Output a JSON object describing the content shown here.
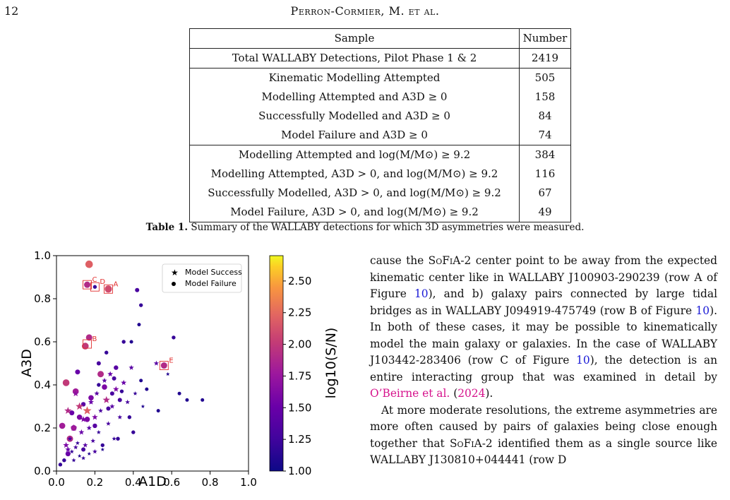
{
  "header": {
    "page_number": "12",
    "running_title": "Perron-Cormier, M. et al."
  },
  "table": {
    "col_headers": [
      "Sample",
      "Number"
    ],
    "rows": [
      [
        "Total WALLABY Detections, Pilot Phase 1 & 2",
        "2419"
      ],
      [
        "Kinematic Modelling Attempted",
        "505"
      ],
      [
        "Modelling Attempted and A3D ≥ 0",
        "158"
      ],
      [
        "Successfully Modelled and A3D ≥ 0",
        "84"
      ],
      [
        "Model Failure and A3D ≥ 0",
        "74"
      ],
      [
        "Modelling Attempted and log(M/M⊙) ≥ 9.2",
        "384"
      ],
      [
        "Modelling Attempted, A3D > 0, and log(M/M⊙) ≥ 9.2",
        "116"
      ],
      [
        "Successfully Modelled, A3D > 0, and log(M/M⊙) ≥ 9.2",
        "67"
      ],
      [
        "Model Failure, A3D > 0, and log(M/M⊙) ≥ 9.2",
        "49"
      ]
    ]
  },
  "caption": {
    "label": "Table 1.",
    "text": " Summary of the WALLABY detections for which 3D asymmetries were measured."
  },
  "chart_data": {
    "type": "scatter",
    "xlabel": "A1D",
    "ylabel": "A3D",
    "xlim": [
      0.0,
      1.0
    ],
    "ylim": [
      0.0,
      1.0
    ],
    "x_ticks": [
      "0.0",
      "0.2",
      "0.4",
      "0.6",
      "0.8",
      "1.0"
    ],
    "y_ticks": [
      "0.0",
      "0.2",
      "0.4",
      "0.6",
      "0.8",
      "1.0"
    ],
    "grid": false,
    "legend_position": "top-right",
    "colorbar": {
      "label": "log10(S/N)",
      "range": [
        1.0,
        2.7
      ],
      "ticks": [
        "1.00",
        "1.25",
        "1.50",
        "1.75",
        "2.00",
        "2.25",
        "2.50"
      ],
      "colormap": "plasma"
    },
    "series": [
      {
        "name": "Model Success",
        "marker": "star",
        "points": [
          [
            0.05,
            0.12,
            1.6
          ],
          [
            0.06,
            0.1,
            1.5
          ],
          [
            0.07,
            0.15,
            1.3
          ],
          [
            0.08,
            0.09,
            1.2
          ],
          [
            0.09,
            0.2,
            1.8
          ],
          [
            0.1,
            0.11,
            1.3
          ],
          [
            0.11,
            0.13,
            1.2
          ],
          [
            0.12,
            0.07,
            1.1
          ],
          [
            0.12,
            0.3,
            2.0
          ],
          [
            0.13,
            0.18,
            1.5
          ],
          [
            0.14,
            0.24,
            1.6
          ],
          [
            0.15,
            0.12,
            1.4
          ],
          [
            0.16,
            0.28,
            2.2
          ],
          [
            0.17,
            0.08,
            1.1
          ],
          [
            0.17,
            0.2,
            1.4
          ],
          [
            0.18,
            0.32,
            1.5
          ],
          [
            0.19,
            0.14,
            1.3
          ],
          [
            0.2,
            0.25,
            1.6
          ],
          [
            0.21,
            0.36,
            1.4
          ],
          [
            0.22,
            0.18,
            1.2
          ],
          [
            0.23,
            0.28,
            1.3
          ],
          [
            0.24,
            0.1,
            1.1
          ],
          [
            0.25,
            0.42,
            1.4
          ],
          [
            0.26,
            0.33,
            1.9
          ],
          [
            0.27,
            0.22,
            1.3
          ],
          [
            0.28,
            0.45,
            1.5
          ],
          [
            0.29,
            0.3,
            1.4
          ],
          [
            0.3,
            0.15,
            1.2
          ],
          [
            0.31,
            0.38,
            1.6
          ],
          [
            0.33,
            0.25,
            1.3
          ],
          [
            0.35,
            0.41,
            1.5
          ],
          [
            0.37,
            0.32,
            1.3
          ],
          [
            0.39,
            0.48,
            1.4
          ],
          [
            0.41,
            0.36,
            1.2
          ],
          [
            0.45,
            0.3,
            1.1
          ],
          [
            0.52,
            0.5,
            1.4
          ],
          [
            0.58,
            0.45,
            1.1
          ],
          [
            0.09,
            0.05,
            1.2
          ],
          [
            0.14,
            0.06,
            1.2
          ],
          [
            0.2,
            0.09,
            1.3
          ],
          [
            0.06,
            0.28,
            1.9
          ],
          [
            0.1,
            0.36,
            1.7
          ]
        ]
      },
      {
        "name": "Model Failure",
        "marker": "circle",
        "points": [
          [
            0.17,
            0.96,
            2.2
          ],
          [
            0.16,
            0.865,
            1.9
          ],
          [
            0.2,
            0.855,
            1.2
          ],
          [
            0.27,
            0.845,
            2.1
          ],
          [
            0.42,
            0.84,
            1.3
          ],
          [
            0.44,
            0.77,
            1.2
          ],
          [
            0.43,
            0.68,
            1.1
          ],
          [
            0.15,
            0.58,
            2.0
          ],
          [
            0.17,
            0.62,
            1.9
          ],
          [
            0.61,
            0.62,
            1.2
          ],
          [
            0.35,
            0.6,
            1.2
          ],
          [
            0.39,
            0.6,
            1.1
          ],
          [
            0.56,
            0.49,
            1.9
          ],
          [
            0.68,
            0.33,
            1.1
          ],
          [
            0.76,
            0.33,
            1.1
          ],
          [
            0.64,
            0.36,
            1.1
          ],
          [
            0.05,
            0.41,
            2.0
          ],
          [
            0.1,
            0.37,
            1.8
          ],
          [
            0.14,
            0.31,
            1.4
          ],
          [
            0.18,
            0.34,
            1.6
          ],
          [
            0.23,
            0.45,
            1.9
          ],
          [
            0.25,
            0.39,
            1.6
          ],
          [
            0.31,
            0.48,
            1.4
          ],
          [
            0.3,
            0.43,
            1.3
          ],
          [
            0.34,
            0.37,
            1.2
          ],
          [
            0.29,
            0.36,
            1.3
          ],
          [
            0.22,
            0.4,
            1.2
          ],
          [
            0.12,
            0.25,
            1.6
          ],
          [
            0.09,
            0.2,
            1.7
          ],
          [
            0.07,
            0.15,
            1.9
          ],
          [
            0.08,
            0.27,
            1.5
          ],
          [
            0.16,
            0.24,
            1.6
          ],
          [
            0.2,
            0.21,
            1.4
          ],
          [
            0.27,
            0.29,
            1.3
          ],
          [
            0.38,
            0.25,
            1.2
          ],
          [
            0.4,
            0.18,
            1.2
          ],
          [
            0.32,
            0.15,
            1.2
          ],
          [
            0.24,
            0.12,
            1.2
          ],
          [
            0.14,
            0.1,
            1.3
          ],
          [
            0.06,
            0.08,
            1.5
          ],
          [
            0.03,
            0.21,
            1.8
          ],
          [
            0.04,
            0.05,
            1.2
          ],
          [
            0.44,
            0.42,
            1.1
          ],
          [
            0.47,
            0.38,
            1.1
          ],
          [
            0.53,
            0.28,
            1.1
          ],
          [
            0.02,
            0.03,
            1.2
          ],
          [
            0.11,
            0.46,
            1.5
          ],
          [
            0.26,
            0.55,
            1.2
          ],
          [
            0.22,
            0.5,
            1.3
          ],
          [
            0.33,
            0.33,
            1.3
          ]
        ]
      }
    ],
    "annotations": [
      {
        "label": "A",
        "x": 0.27,
        "y": 0.845
      },
      {
        "label": "B",
        "x": 0.16,
        "y": 0.59
      },
      {
        "label": "C",
        "x": 0.16,
        "y": 0.865
      },
      {
        "label": "D",
        "x": 0.2,
        "y": 0.855
      },
      {
        "label": "E",
        "x": 0.56,
        "y": 0.49
      }
    ]
  },
  "body": {
    "p1": [
      {
        "t": "cause the "
      },
      {
        "t": "SoFiA-2",
        "cls": "sc"
      },
      {
        "t": " center point to be away from the expected kinematic center like in WALLABY J100903-290239 (row A of Figure "
      },
      {
        "t": "10",
        "cls": "ref"
      },
      {
        "t": "), and b) galaxy pairs connected by large tidal bridges as in WALLABY J094919-475749 (row B of Figure "
      },
      {
        "t": "10",
        "cls": "ref"
      },
      {
        "t": "). In both of these cases, it may be possible to kinematically model the main galaxy or galaxies. In the case of WALLABY J103442-283406 (row C of Figure "
      },
      {
        "t": "10",
        "cls": "ref"
      },
      {
        "t": "), the detection is an entire interacting group that was examined in detail by "
      },
      {
        "t": "O’Beirne et al.",
        "cls": "cite"
      },
      {
        "t": " ("
      },
      {
        "t": "2024",
        "cls": "cite"
      },
      {
        "t": ")."
      }
    ],
    "p2": [
      {
        "t": "At more moderate resolutions, the extreme asymmetries are more often caused by pairs of galaxies being close enough together that "
      },
      {
        "t": "SoFiA-2",
        "cls": "sc"
      },
      {
        "t": " identified them as a single source like WALLABY J130810+044441 (row D"
      }
    ]
  }
}
